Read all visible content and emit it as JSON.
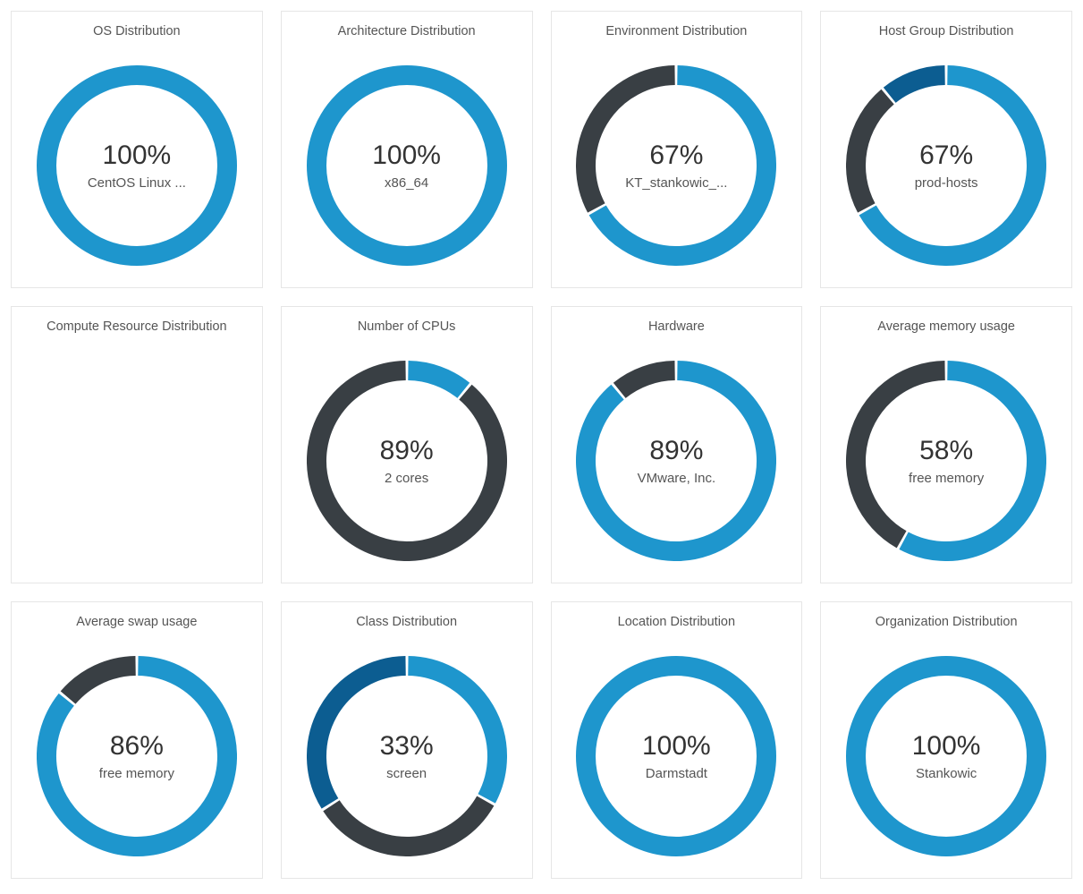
{
  "layout": {
    "columns": 4,
    "rows": 3,
    "card_border_color": "#e6e6e6",
    "background_color": "#ffffff"
  },
  "donut_style": {
    "outer_radius": 112,
    "stroke_width": 22,
    "title_fontsize": 14.5,
    "title_color": "#555555",
    "pct_fontsize": 30,
    "pct_color": "#333333",
    "label_fontsize": 15,
    "label_color": "#555555"
  },
  "cards": [
    {
      "title": "OS Distribution",
      "pct_text": "100%",
      "label": "CentOS Linux ...",
      "segments": [
        {
          "fraction": 1.0,
          "color": "#1e96cd"
        }
      ],
      "empty": false
    },
    {
      "title": "Architecture Distribution",
      "pct_text": "100%",
      "label": "x86_64",
      "segments": [
        {
          "fraction": 1.0,
          "color": "#1e96cd"
        }
      ],
      "empty": false
    },
    {
      "title": "Environment Distribution",
      "pct_text": "67%",
      "label": "KT_stankowic_...",
      "segments": [
        {
          "fraction": 0.67,
          "color": "#1e96cd"
        },
        {
          "fraction": 0.33,
          "color": "#393f44"
        }
      ],
      "empty": false
    },
    {
      "title": "Host Group Distribution",
      "pct_text": "67%",
      "label": "prod-hosts",
      "segments": [
        {
          "fraction": 0.67,
          "color": "#1e96cd"
        },
        {
          "fraction": 0.22,
          "color": "#393f44"
        },
        {
          "fraction": 0.11,
          "color": "#0c5d91"
        }
      ],
      "empty": false
    },
    {
      "title": "Compute Resource Distribution",
      "pct_text": "",
      "label": "",
      "segments": [],
      "empty": true
    },
    {
      "title": "Number of CPUs",
      "pct_text": "89%",
      "label": "2 cores",
      "segments": [
        {
          "fraction": 0.11,
          "color": "#1e96cd"
        },
        {
          "fraction": 0.89,
          "color": "#393f44"
        }
      ],
      "empty": false
    },
    {
      "title": "Hardware",
      "pct_text": "89%",
      "label": "VMware, Inc.",
      "segments": [
        {
          "fraction": 0.89,
          "color": "#1e96cd"
        },
        {
          "fraction": 0.11,
          "color": "#393f44"
        }
      ],
      "empty": false
    },
    {
      "title": "Average memory usage",
      "pct_text": "58%",
      "label": "free memory",
      "segments": [
        {
          "fraction": 0.58,
          "color": "#1e96cd"
        },
        {
          "fraction": 0.42,
          "color": "#393f44"
        }
      ],
      "empty": false
    },
    {
      "title": "Average swap usage",
      "pct_text": "86%",
      "label": "free memory",
      "segments": [
        {
          "fraction": 0.86,
          "color": "#1e96cd"
        },
        {
          "fraction": 0.14,
          "color": "#393f44"
        }
      ],
      "empty": false
    },
    {
      "title": "Class Distribution",
      "pct_text": "33%",
      "label": "screen",
      "segments": [
        {
          "fraction": 0.33,
          "color": "#1e96cd"
        },
        {
          "fraction": 0.33,
          "color": "#393f44"
        },
        {
          "fraction": 0.34,
          "color": "#0c5d91"
        }
      ],
      "empty": false
    },
    {
      "title": "Location Distribution",
      "pct_text": "100%",
      "label": "Darmstadt",
      "segments": [
        {
          "fraction": 1.0,
          "color": "#1e96cd"
        }
      ],
      "empty": false
    },
    {
      "title": "Organization Distribution",
      "pct_text": "100%",
      "label": "Stankowic",
      "segments": [
        {
          "fraction": 1.0,
          "color": "#1e96cd"
        }
      ],
      "empty": false
    }
  ]
}
